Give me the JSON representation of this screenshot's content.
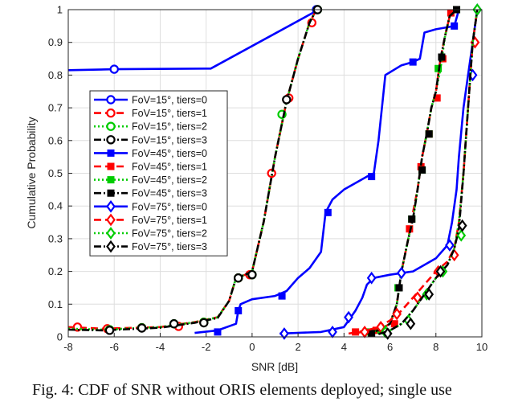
{
  "caption": "Fig. 4: CDF of SNR without ORIS elements deployed; single use",
  "chart_data": {
    "type": "line",
    "xlabel": "SNR [dB]",
    "ylabel": "Cumulative Probability",
    "xlim": [
      -8,
      10
    ],
    "ylim": [
      0,
      1
    ],
    "xticks": [
      -8,
      -6,
      -4,
      -2,
      0,
      2,
      4,
      6,
      8,
      10
    ],
    "yticks": [
      0,
      0.1,
      0.2,
      0.3,
      0.4,
      0.5,
      0.6,
      0.7,
      0.8,
      0.9,
      1
    ],
    "grid": true,
    "legend_position": "left",
    "series": [
      {
        "name": "FoV=15°, tiers=0",
        "color": "#0000ff",
        "dash": "solid",
        "marker": "circle",
        "points": [
          [
            -8,
            0.815
          ],
          [
            -6,
            0.818
          ],
          [
            -1.8,
            0.82
          ],
          [
            2.9,
            1.0
          ]
        ],
        "markers": [
          [
            -6,
            0.818
          ],
          [
            2.8,
            1.0
          ]
        ]
      },
      {
        "name": "FoV=15°, tiers=1",
        "color": "#ff0000",
        "dash": "dash",
        "marker": "circle",
        "points": [
          [
            -8,
            0.03
          ],
          [
            -6.5,
            0.025
          ],
          [
            -4,
            0.03
          ],
          [
            -2.5,
            0.045
          ],
          [
            -1.5,
            0.06
          ],
          [
            -1,
            0.11
          ],
          [
            -0.7,
            0.18
          ],
          [
            -0.3,
            0.19
          ],
          [
            0,
            0.2
          ],
          [
            0.5,
            0.35
          ],
          [
            1,
            0.55
          ],
          [
            1.5,
            0.72
          ],
          [
            2,
            0.85
          ],
          [
            2.5,
            0.96
          ],
          [
            2.8,
            1.0
          ]
        ],
        "markers": [
          [
            -7.6,
            0.03
          ],
          [
            -6.3,
            0.025
          ],
          [
            -4.8,
            0.028
          ],
          [
            -3.2,
            0.032
          ],
          [
            -2.1,
            0.045
          ],
          [
            -0.6,
            0.18
          ],
          [
            -0.1,
            0.19
          ],
          [
            0.85,
            0.5
          ],
          [
            1.6,
            0.73
          ],
          [
            2.6,
            0.96
          ]
        ]
      },
      {
        "name": "FoV=15°, tiers=2",
        "color": "#00cc00",
        "dash": "dot",
        "marker": "circle",
        "points": [
          [
            -8,
            0.025
          ],
          [
            -6.5,
            0.022
          ],
          [
            -4,
            0.03
          ],
          [
            -2.5,
            0.045
          ],
          [
            -1.5,
            0.06
          ],
          [
            -1,
            0.11
          ],
          [
            -0.7,
            0.18
          ],
          [
            -0.3,
            0.19
          ],
          [
            0,
            0.2
          ],
          [
            0.5,
            0.35
          ],
          [
            1,
            0.55
          ],
          [
            1.5,
            0.72
          ],
          [
            2,
            0.85
          ],
          [
            2.5,
            0.96
          ],
          [
            2.8,
            1.0
          ]
        ],
        "markers": [
          [
            -6.2,
            0.022
          ],
          [
            -4.8,
            0.028
          ],
          [
            -3.4,
            0.04
          ],
          [
            -2.1,
            0.045
          ],
          [
            -0.6,
            0.18
          ],
          [
            0,
            0.19
          ],
          [
            1.3,
            0.68
          ],
          [
            2.85,
            1.0
          ]
        ]
      },
      {
        "name": "FoV=15°, tiers=3",
        "color": "#000000",
        "dash": "dashdot",
        "marker": "circle",
        "points": [
          [
            -8,
            0.022
          ],
          [
            -6.5,
            0.02
          ],
          [
            -4,
            0.028
          ],
          [
            -2.5,
            0.043
          ],
          [
            -1.5,
            0.058
          ],
          [
            -1,
            0.11
          ],
          [
            -0.7,
            0.18
          ],
          [
            -0.3,
            0.19
          ],
          [
            0,
            0.2
          ],
          [
            0.5,
            0.35
          ],
          [
            1,
            0.55
          ],
          [
            1.5,
            0.72
          ],
          [
            2,
            0.85
          ],
          [
            2.5,
            0.96
          ],
          [
            2.8,
            1.0
          ]
        ],
        "markers": [
          [
            -6.2,
            0.02
          ],
          [
            -4.8,
            0.027
          ],
          [
            -3.4,
            0.04
          ],
          [
            -2.1,
            0.043
          ],
          [
            -0.6,
            0.18
          ],
          [
            0,
            0.19
          ],
          [
            1.5,
            0.725
          ],
          [
            2.85,
            1.0
          ]
        ]
      },
      {
        "name": "FoV=45°, tiers=0",
        "color": "#0000ff",
        "dash": "solid",
        "marker": "square",
        "points": [
          [
            -2.5,
            0.012
          ],
          [
            -1.5,
            0.02
          ],
          [
            -0.7,
            0.04
          ],
          [
            -0.6,
            0.08
          ],
          [
            -0.5,
            0.1
          ],
          [
            0,
            0.115
          ],
          [
            1,
            0.125
          ],
          [
            1.5,
            0.14
          ],
          [
            2,
            0.18
          ],
          [
            2.5,
            0.21
          ],
          [
            3,
            0.26
          ],
          [
            3.2,
            0.38
          ],
          [
            3.5,
            0.42
          ],
          [
            4,
            0.45
          ],
          [
            5,
            0.49
          ],
          [
            5.3,
            0.5
          ],
          [
            5.5,
            0.6
          ],
          [
            5.8,
            0.8
          ],
          [
            6.5,
            0.83
          ],
          [
            7,
            0.84
          ],
          [
            7.3,
            0.85
          ],
          [
            7.5,
            0.93
          ],
          [
            8,
            0.94
          ],
          [
            8.8,
            0.95
          ],
          [
            9,
            1.0
          ]
        ],
        "markers": [
          [
            -1.5,
            0.015
          ],
          [
            -0.6,
            0.08
          ],
          [
            1.3,
            0.125
          ],
          [
            3.3,
            0.38
          ],
          [
            5.2,
            0.49
          ],
          [
            7,
            0.84
          ],
          [
            8.8,
            0.95
          ]
        ]
      },
      {
        "name": "FoV=45°, tiers=1",
        "color": "#ff0000",
        "dash": "dash",
        "marker": "square",
        "points": [
          [
            4.2,
            0.01
          ],
          [
            5,
            0.02
          ],
          [
            5.5,
            0.02
          ],
          [
            6,
            0.04
          ],
          [
            6.3,
            0.1
          ],
          [
            6.5,
            0.2
          ],
          [
            6.8,
            0.3
          ],
          [
            7,
            0.38
          ],
          [
            7.2,
            0.45
          ],
          [
            7.4,
            0.55
          ],
          [
            7.6,
            0.62
          ],
          [
            7.8,
            0.7
          ],
          [
            8,
            0.75
          ],
          [
            8.2,
            0.85
          ],
          [
            8.4,
            0.92
          ],
          [
            8.6,
            0.98
          ],
          [
            8.8,
            1.0
          ]
        ],
        "markers": [
          [
            4.5,
            0.015
          ],
          [
            5.4,
            0.02
          ],
          [
            6.2,
            0.04
          ],
          [
            6.85,
            0.33
          ],
          [
            7.35,
            0.52
          ],
          [
            7.7,
            0.62
          ],
          [
            8.05,
            0.73
          ],
          [
            8.3,
            0.85
          ],
          [
            8.65,
            0.99
          ]
        ]
      },
      {
        "name": "FoV=45°, tiers=2",
        "color": "#00cc00",
        "dash": "dot",
        "marker": "square",
        "points": [
          [
            4.8,
            0.01
          ],
          [
            5.5,
            0.02
          ],
          [
            6,
            0.04
          ],
          [
            6.3,
            0.1
          ],
          [
            6.5,
            0.2
          ],
          [
            6.8,
            0.3
          ],
          [
            7,
            0.36
          ],
          [
            7.2,
            0.45
          ],
          [
            7.4,
            0.55
          ],
          [
            7.6,
            0.62
          ],
          [
            7.8,
            0.7
          ],
          [
            8,
            0.75
          ],
          [
            8.2,
            0.82
          ],
          [
            8.4,
            0.92
          ],
          [
            8.6,
            0.98
          ],
          [
            8.9,
            1.0
          ]
        ],
        "markers": [
          [
            5.1,
            0.015
          ],
          [
            5.6,
            0.02
          ],
          [
            6.35,
            0.15
          ],
          [
            6.95,
            0.36
          ],
          [
            7.4,
            0.51
          ],
          [
            7.7,
            0.62
          ],
          [
            8.1,
            0.82
          ],
          [
            8.9,
            1.0
          ]
        ]
      },
      {
        "name": "FoV=45°, tiers=3",
        "color": "#000000",
        "dash": "dashdot",
        "marker": "square",
        "points": [
          [
            4.8,
            0.008
          ],
          [
            5.5,
            0.02
          ],
          [
            6,
            0.04
          ],
          [
            6.3,
            0.1
          ],
          [
            6.5,
            0.2
          ],
          [
            6.8,
            0.3
          ],
          [
            7,
            0.36
          ],
          [
            7.2,
            0.45
          ],
          [
            7.4,
            0.55
          ],
          [
            7.6,
            0.62
          ],
          [
            7.8,
            0.7
          ],
          [
            8,
            0.75
          ],
          [
            8.2,
            0.85
          ],
          [
            8.4,
            0.92
          ],
          [
            8.6,
            0.98
          ],
          [
            8.9,
            1.0
          ]
        ],
        "markers": [
          [
            5.2,
            0.01
          ],
          [
            5.7,
            0.02
          ],
          [
            6.4,
            0.15
          ],
          [
            6.95,
            0.36
          ],
          [
            7.4,
            0.51
          ],
          [
            7.7,
            0.62
          ],
          [
            8.25,
            0.855
          ],
          [
            8.9,
            1.0
          ]
        ]
      },
      {
        "name": "FoV=75°, tiers=0",
        "color": "#0000ff",
        "dash": "solid",
        "marker": "diamond",
        "points": [
          [
            1.2,
            0.01
          ],
          [
            3,
            0.015
          ],
          [
            4,
            0.03
          ],
          [
            4.5,
            0.08
          ],
          [
            4.8,
            0.12
          ],
          [
            5,
            0.16
          ],
          [
            5.3,
            0.18
          ],
          [
            6,
            0.19
          ],
          [
            7,
            0.2
          ],
          [
            8,
            0.24
          ],
          [
            8.5,
            0.28
          ],
          [
            8.7,
            0.35
          ],
          [
            8.9,
            0.45
          ],
          [
            9,
            0.55
          ],
          [
            9.2,
            0.7
          ],
          [
            9.4,
            0.8
          ],
          [
            9.6,
            0.9
          ],
          [
            9.8,
            1.0
          ]
        ],
        "markers": [
          [
            1.4,
            0.01
          ],
          [
            3.5,
            0.015
          ],
          [
            4.2,
            0.06
          ],
          [
            5.2,
            0.18
          ],
          [
            6.5,
            0.195
          ],
          [
            8.6,
            0.28
          ],
          [
            9.6,
            0.8
          ],
          [
            9.8,
            1.0
          ]
        ]
      },
      {
        "name": "FoV=75°, tiers=1",
        "color": "#ff0000",
        "dash": "dash",
        "marker": "diamond",
        "points": [
          [
            4.5,
            0.01
          ],
          [
            5,
            0.02
          ],
          [
            5.5,
            0.03
          ],
          [
            6,
            0.05
          ],
          [
            6.5,
            0.08
          ],
          [
            7,
            0.12
          ],
          [
            7.5,
            0.16
          ],
          [
            8,
            0.2
          ],
          [
            8.5,
            0.23
          ],
          [
            8.8,
            0.27
          ],
          [
            9,
            0.35
          ],
          [
            9.2,
            0.5
          ],
          [
            9.4,
            0.7
          ],
          [
            9.6,
            0.9
          ],
          [
            9.8,
            1.0
          ]
        ],
        "markers": [
          [
            4.9,
            0.015
          ],
          [
            5.6,
            0.03
          ],
          [
            6.3,
            0.07
          ],
          [
            7.2,
            0.12
          ],
          [
            8.1,
            0.2
          ],
          [
            8.8,
            0.25
          ],
          [
            9.7,
            0.9
          ]
        ]
      },
      {
        "name": "FoV=75°, tiers=2",
        "color": "#00cc00",
        "dash": "dot",
        "marker": "diamond",
        "points": [
          [
            5.5,
            0.01
          ],
          [
            6,
            0.02
          ],
          [
            6.5,
            0.04
          ],
          [
            7,
            0.08
          ],
          [
            7.5,
            0.13
          ],
          [
            8,
            0.18
          ],
          [
            8.5,
            0.22
          ],
          [
            8.8,
            0.27
          ],
          [
            9,
            0.35
          ],
          [
            9.2,
            0.5
          ],
          [
            9.4,
            0.7
          ],
          [
            9.6,
            0.9
          ],
          [
            9.8,
            1.0
          ]
        ],
        "markers": [
          [
            5.8,
            0.015
          ],
          [
            6.8,
            0.05
          ],
          [
            7.6,
            0.13
          ],
          [
            8.3,
            0.2
          ],
          [
            9.1,
            0.31
          ],
          [
            9.8,
            1.0
          ]
        ]
      },
      {
        "name": "FoV=75°, tiers=3",
        "color": "#000000",
        "dash": "dashdot",
        "marker": "diamond",
        "points": [
          [
            5.5,
            0.008
          ],
          [
            6,
            0.02
          ],
          [
            6.5,
            0.04
          ],
          [
            7,
            0.08
          ],
          [
            7.5,
            0.13
          ],
          [
            8,
            0.18
          ],
          [
            8.5,
            0.22
          ],
          [
            8.8,
            0.27
          ],
          [
            9,
            0.33
          ],
          [
            9.2,
            0.5
          ],
          [
            9.4,
            0.7
          ],
          [
            9.6,
            0.9
          ],
          [
            9.8,
            1.0
          ]
        ],
        "markers": [
          [
            5.9,
            0.01
          ],
          [
            6.9,
            0.04
          ],
          [
            7.7,
            0.13
          ],
          [
            8.2,
            0.2
          ],
          [
            9.15,
            0.34
          ]
        ]
      }
    ]
  }
}
